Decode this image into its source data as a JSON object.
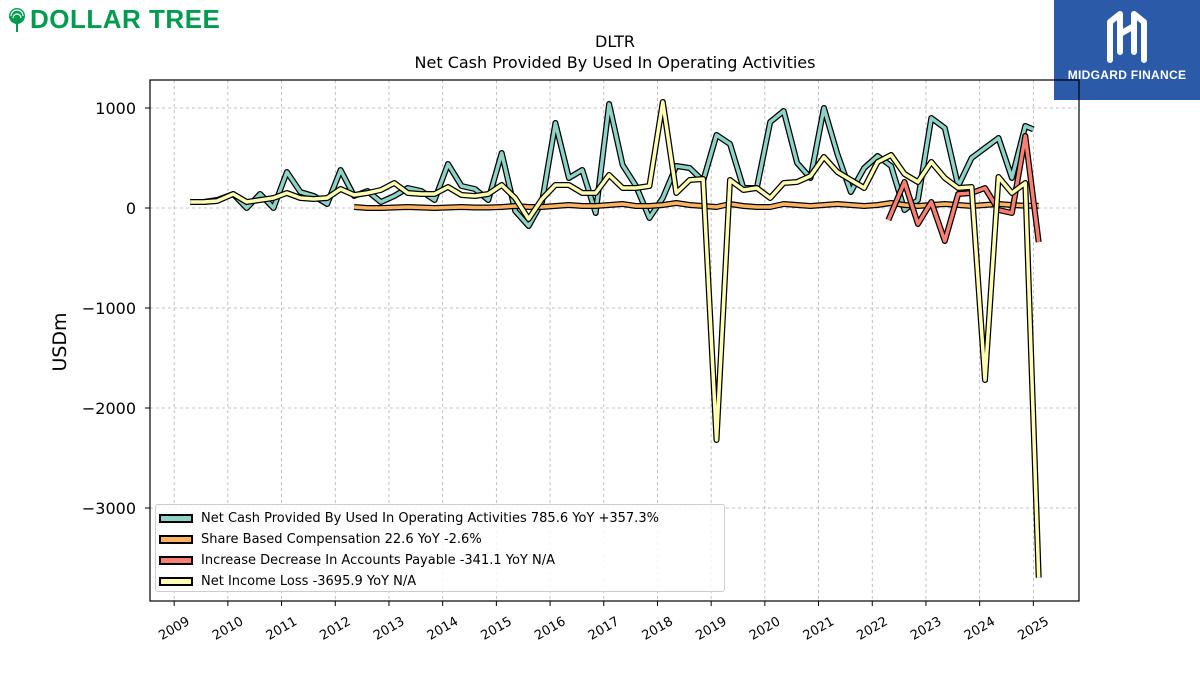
{
  "logos": {
    "left_text": "DOLLAR TREE",
    "right_text": "MIDGARD FINANCE",
    "left_color": "#009b4e",
    "right_color": "#2a5aa8"
  },
  "chart_data": {
    "type": "line",
    "title": "DLTR",
    "subtitle": "Net Cash Provided By Used In Operating Activities",
    "xlabel": "",
    "ylabel": "USDm",
    "xlim": [
      2008.55,
      2025.85
    ],
    "ylim": [
      -3930,
      1280
    ],
    "grid": true,
    "legend_position": "bottom-left",
    "x_ticks": [
      2009,
      2010,
      2011,
      2012,
      2013,
      2014,
      2015,
      2016,
      2017,
      2018,
      2019,
      2020,
      2021,
      2022,
      2023,
      2024,
      2025
    ],
    "y_ticks": [
      1000,
      0,
      -1000,
      -2000,
      -3000
    ],
    "y_tick_labels": [
      "1000",
      "0",
      "−1000",
      "−2000",
      "−3000"
    ],
    "series": [
      {
        "name": "Net Cash Provided By Used In Operating Activities",
        "legend_label": "Net Cash Provided By Used In Operating Activities  785.6 YoY +357.3%",
        "color": "#8dd3c7",
        "x": [
          2009.3,
          2009.55,
          2009.8,
          2010.1,
          2010.35,
          2010.6,
          2010.85,
          2011.1,
          2011.35,
          2011.6,
          2011.85,
          2012.1,
          2012.35,
          2012.6,
          2012.85,
          2013.1,
          2013.35,
          2013.6,
          2013.85,
          2014.1,
          2014.35,
          2014.6,
          2014.85,
          2015.1,
          2015.35,
          2015.6,
          2015.85,
          2016.1,
          2016.35,
          2016.6,
          2016.85,
          2017.1,
          2017.35,
          2017.6,
          2017.85,
          2018.1,
          2018.35,
          2018.6,
          2018.85,
          2019.1,
          2019.35,
          2019.6,
          2019.85,
          2020.1,
          2020.35,
          2020.6,
          2020.85,
          2021.1,
          2021.35,
          2021.6,
          2021.85,
          2022.1,
          2022.35,
          2022.6,
          2022.85,
          2023.1,
          2023.35,
          2023.6,
          2023.85,
          2024.1,
          2024.35,
          2024.6,
          2024.85,
          2025.0
        ],
        "y": [
          60,
          60,
          80,
          140,
          0,
          140,
          0,
          360,
          160,
          120,
          40,
          380,
          120,
          170,
          60,
          120,
          200,
          170,
          80,
          440,
          220,
          190,
          80,
          550,
          -30,
          -180,
          60,
          850,
          300,
          380,
          -50,
          1040,
          430,
          220,
          -100,
          100,
          420,
          400,
          270,
          730,
          640,
          200,
          200,
          860,
          970,
          450,
          300,
          1000,
          540,
          160,
          400,
          520,
          420,
          -20,
          80,
          900,
          800,
          220,
          500,
          600,
          700,
          300,
          820,
          786
        ]
      },
      {
        "name": "Share Based Compensation",
        "legend_label": "Share Based Compensation  22.6 YoY -2.6%",
        "color": "#fdb462",
        "x": [
          2012.35,
          2012.6,
          2012.85,
          2013.1,
          2013.35,
          2013.6,
          2013.85,
          2014.1,
          2014.35,
          2014.6,
          2014.85,
          2015.1,
          2015.35,
          2015.6,
          2015.85,
          2016.1,
          2016.35,
          2016.6,
          2016.85,
          2017.1,
          2017.35,
          2017.6,
          2017.85,
          2018.1,
          2018.35,
          2018.6,
          2018.85,
          2019.1,
          2019.35,
          2019.6,
          2019.85,
          2020.1,
          2020.35,
          2020.6,
          2020.85,
          2021.1,
          2021.35,
          2021.6,
          2021.85,
          2022.1,
          2022.35,
          2022.6,
          2022.85,
          2023.1,
          2023.35,
          2023.6,
          2023.85,
          2024.1,
          2024.35,
          2024.6,
          2024.85,
          2025.1
        ],
        "y": [
          10,
          0,
          0,
          5,
          10,
          5,
          0,
          5,
          10,
          5,
          5,
          10,
          20,
          10,
          10,
          20,
          30,
          20,
          20,
          30,
          40,
          20,
          20,
          30,
          50,
          30,
          20,
          10,
          40,
          20,
          10,
          10,
          40,
          30,
          20,
          30,
          40,
          30,
          20,
          30,
          50,
          30,
          20,
          30,
          40,
          30,
          20,
          30,
          40,
          30,
          23,
          23
        ]
      },
      {
        "name": "Increase Decrease In Accounts Payable",
        "legend_label": "Increase Decrease In Accounts Payable  -341.1 YoY N/A",
        "color": "#fb8072",
        "x": [
          2022.3,
          2022.6,
          2022.85,
          2023.1,
          2023.35,
          2023.6,
          2023.85,
          2024.1,
          2024.35,
          2024.6,
          2024.85,
          2025.1
        ],
        "y": [
          -120,
          260,
          -160,
          60,
          -330,
          140,
          150,
          200,
          -20,
          -50,
          720,
          -341
        ]
      },
      {
        "name": "Net Income Loss",
        "legend_label": "Net Income Loss  -3695.9 YoY N/A",
        "color": "#ffffb3",
        "x": [
          2009.3,
          2009.55,
          2009.8,
          2010.1,
          2010.35,
          2010.6,
          2010.85,
          2011.1,
          2011.35,
          2011.6,
          2011.85,
          2012.1,
          2012.35,
          2012.6,
          2012.85,
          2013.1,
          2013.35,
          2013.6,
          2013.85,
          2014.1,
          2014.35,
          2014.6,
          2014.85,
          2015.1,
          2015.35,
          2015.6,
          2015.85,
          2016.1,
          2016.35,
          2016.6,
          2016.85,
          2017.1,
          2017.35,
          2017.6,
          2017.85,
          2018.1,
          2018.35,
          2018.6,
          2018.85,
          2019.1,
          2019.35,
          2019.6,
          2019.85,
          2020.1,
          2020.35,
          2020.6,
          2020.85,
          2021.1,
          2021.35,
          2021.6,
          2021.85,
          2022.1,
          2022.35,
          2022.6,
          2022.85,
          2023.1,
          2023.35,
          2023.6,
          2023.85,
          2024.1,
          2024.35,
          2024.6,
          2024.85,
          2025.1
        ],
        "y": [
          60,
          60,
          70,
          140,
          60,
          80,
          100,
          150,
          100,
          90,
          100,
          190,
          130,
          150,
          180,
          250,
          150,
          140,
          140,
          210,
          130,
          120,
          140,
          230,
          100,
          -110,
          90,
          230,
          230,
          150,
          150,
          330,
          200,
          200,
          220,
          1060,
          150,
          280,
          290,
          -2320,
          280,
          180,
          200,
          100,
          250,
          260,
          320,
          510,
          360,
          280,
          200,
          460,
          530,
          340,
          260,
          460,
          300,
          200,
          210,
          -1720,
          310,
          150,
          250,
          -3696
        ]
      }
    ]
  }
}
